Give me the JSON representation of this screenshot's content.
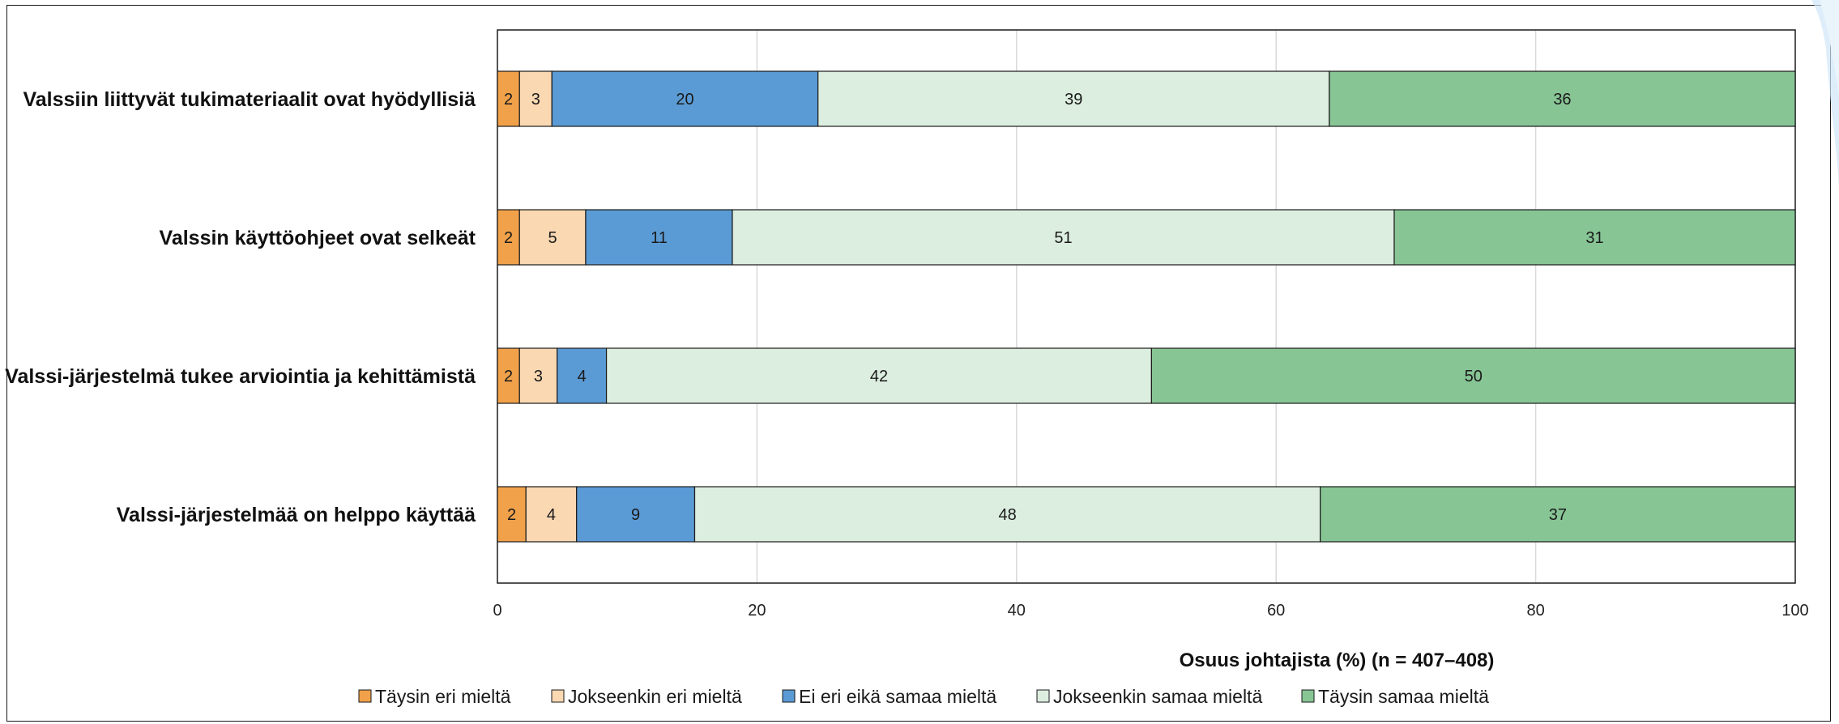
{
  "chart_data": {
    "type": "bar",
    "orientation": "horizontal",
    "stacked": true,
    "categories": [
      "Valssiin liittyvät tukimateriaalit ovat hyödyllisiä",
      "Valssin käyttöohjeet ovat selkeät",
      "Valssi-järjestelmä tukee arviointia ja kehittämistä",
      "Valssi-järjestelmää on helppo käyttää"
    ],
    "series": [
      {
        "name": "Täysin eri mieltä",
        "color": "#F0A14A",
        "values": [
          2,
          2,
          2,
          2
        ],
        "plotted": [
          1.7,
          1.7,
          1.7,
          2.2
        ]
      },
      {
        "name": "Jokseenkin eri mieltä",
        "color": "#F9D8B2",
        "values": [
          3,
          5,
          3,
          4
        ],
        "plotted": [
          2.5,
          5.1,
          2.9,
          3.9
        ]
      },
      {
        "name": "Ei eri eikä samaa mieltä",
        "color": "#5B9BD5",
        "values": [
          20,
          11,
          4,
          9
        ],
        "plotted": [
          20.5,
          11.3,
          3.8,
          9.1
        ]
      },
      {
        "name": "Jokseenkin samaa mieltä",
        "color": "#DCEEDF",
        "values": [
          39,
          51,
          42,
          48
        ],
        "plotted": [
          39.4,
          51.0,
          42.0,
          48.2
        ]
      },
      {
        "name": "Täysin samaa mieltä",
        "color": "#87C595",
        "values": [
          36,
          31,
          50,
          37
        ],
        "plotted": [
          35.9,
          30.9,
          49.6,
          36.6
        ]
      }
    ],
    "xlabel": "Osuus johtajista (%) (n = 407–408)",
    "xlim": [
      0,
      100
    ],
    "xticks": [
      "0",
      "20",
      "40",
      "60",
      "80",
      "100"
    ],
    "grid": "vertical",
    "legend": "bottom"
  }
}
